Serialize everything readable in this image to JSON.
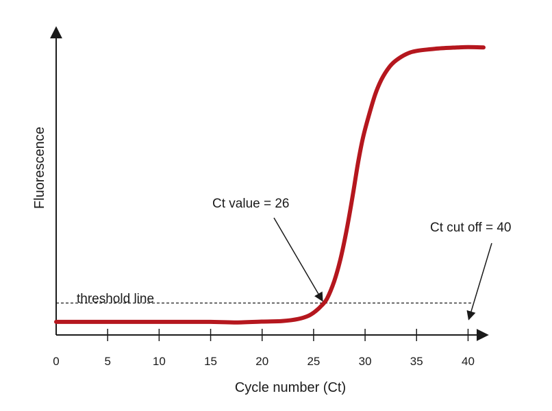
{
  "chart_data": {
    "type": "line",
    "xlabel": "Cycle number (Ct)",
    "ylabel": "Fluorescence",
    "x_ticks": [
      0,
      5,
      10,
      15,
      20,
      25,
      30,
      35,
      40
    ],
    "xlim": [
      0,
      41.5
    ],
    "ylim": [
      0,
      100
    ],
    "grid": false,
    "line_color": "#b5171e",
    "series": [
      {
        "x": [
          0,
          5,
          10,
          15,
          17.5,
          20,
          22,
          23.5,
          24.5,
          25.2,
          25.8,
          26.3,
          27,
          27.6,
          28.2,
          28.8,
          29.3,
          29.8,
          30.4,
          31,
          31.6,
          32.3,
          33,
          34,
          35,
          37,
          39,
          40,
          41.5
        ],
        "y": [
          4.5,
          4.5,
          4.5,
          4.5,
          4.3,
          4.6,
          4.8,
          5.5,
          6.6,
          8.2,
          10.2,
          12.5,
          18.5,
          26,
          36,
          48,
          59,
          68,
          76,
          83,
          88,
          92,
          94.5,
          96.7,
          97.8,
          98.6,
          99.0,
          99.1,
          99.0
        ]
      }
    ],
    "threshold": {
      "y": 11,
      "label": "threshold line"
    },
    "annotations": [
      {
        "text": "Ct value = 26",
        "x": 26
      },
      {
        "text": "Ct cut off = 40",
        "x": 40
      }
    ]
  }
}
